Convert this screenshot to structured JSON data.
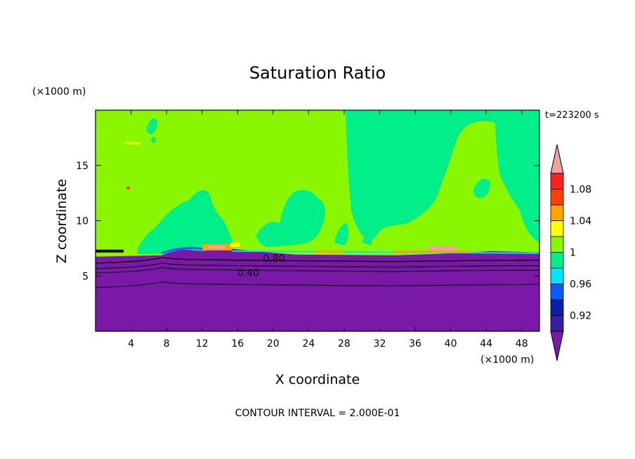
{
  "chart_data": {
    "type": "heatmap",
    "title": "Saturation Ratio",
    "xlabel": "X coordinate",
    "ylabel": "Z coordinate",
    "x_unit": "(×1000 m)",
    "y_unit": "(×1000 m)",
    "time_label": "t=223200 s",
    "footer": "CONTOUR INTERVAL = 2.000E-01",
    "xlim": [
      0,
      50
    ],
    "ylim": [
      0,
      20
    ],
    "x_ticks": [
      4,
      8,
      12,
      16,
      20,
      24,
      28,
      32,
      36,
      40,
      44,
      48
    ],
    "y_ticks": [
      5,
      10,
      15
    ],
    "contour_labels": [
      {
        "text": "0.80",
        "x": 20.1,
        "z": 6.6
      },
      {
        "text": "0.40",
        "x": 17.2,
        "z": 5.3
      }
    ],
    "colorbar": {
      "colors": [
        "#7a18a8",
        "#3a1ea0",
        "#0b1ea8",
        "#0a5cff",
        "#00e5ff",
        "#00ee88",
        "#88f700",
        "#ffff00",
        "#ffa500",
        "#ff4000",
        "#ff2020",
        "#f2a0a0"
      ],
      "tick_labels": [
        "0.92",
        "0.96",
        "1",
        "1.04",
        "1.08"
      ],
      "tick_levels": [
        0.92,
        0.96,
        1.0,
        1.04,
        1.08
      ]
    },
    "layers": {
      "dry_top_z": 7.0,
      "contour_levels_z": [
        {
          "value": 0.8,
          "z": 6.3
        },
        {
          "value": 0.6,
          "z": 5.8
        },
        {
          "value": 0.4,
          "z": 5.4
        },
        {
          "value": 0.2,
          "z": 4.1
        }
      ]
    }
  }
}
